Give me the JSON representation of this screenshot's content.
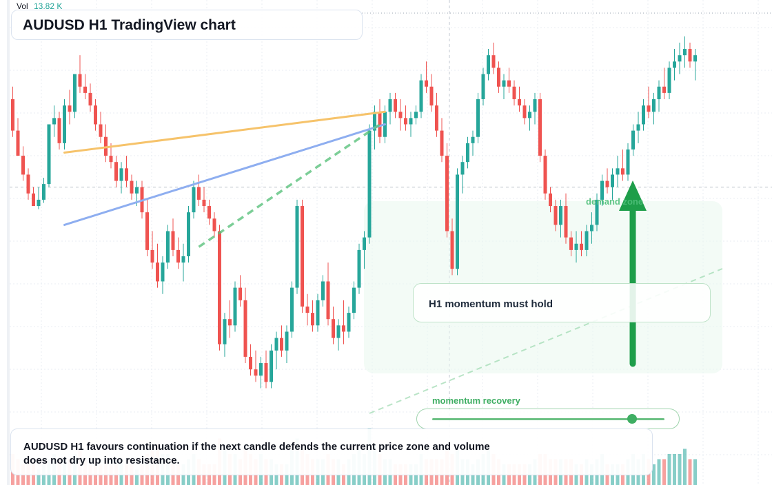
{
  "header": {
    "title": "AUDUSD H1 TradingView chart",
    "volume_label": "Vol",
    "volume_value": "13.82 K"
  },
  "annotations": {
    "callout": "H1 momentum must hold",
    "zone_label": "demand zone",
    "momentum_label": "momentum recovery",
    "momentum_level": 0.86,
    "summary": "AUDUSD H1 favours continuation if the next candle defends the current price zone and volume does not dry up into resistance."
  },
  "colors": {
    "up": "#26a69a",
    "down": "#ef5350",
    "orange_line": "#f6c36b",
    "blue_line": "#8eaef0",
    "accent_green": "#1e9e4a"
  },
  "chart_data": {
    "type": "candlestick",
    "symbol": "AUDUSD",
    "timeframe": "H1",
    "price_range": [
      0,
      100
    ],
    "volume_range": [
      0,
      12
    ],
    "candles": [
      [
        80,
        84,
        68,
        70,
        6
      ],
      [
        70,
        74,
        62,
        62,
        5
      ],
      [
        62,
        65,
        54,
        56,
        4
      ],
      [
        56,
        58,
        48,
        50,
        5
      ],
      [
        50,
        52,
        46,
        46,
        4
      ],
      [
        46,
        52,
        45,
        48,
        3
      ],
      [
        48,
        55,
        47,
        53,
        4
      ],
      [
        53,
        72,
        52,
        72,
        5
      ],
      [
        72,
        78,
        68,
        74,
        6
      ],
      [
        74,
        76,
        64,
        66,
        5
      ],
      [
        66,
        80,
        64,
        78,
        5
      ],
      [
        78,
        83,
        72,
        76,
        5
      ],
      [
        76,
        88,
        74,
        88,
        6
      ],
      [
        88,
        94,
        82,
        84,
        7
      ],
      [
        84,
        88,
        80,
        82,
        5
      ],
      [
        82,
        85,
        76,
        78,
        4
      ],
      [
        78,
        80,
        70,
        72,
        5
      ],
      [
        72,
        76,
        66,
        68,
        4
      ],
      [
        68,
        72,
        60,
        62,
        5
      ],
      [
        62,
        66,
        58,
        60,
        4
      ],
      [
        60,
        62,
        52,
        54,
        4
      ],
      [
        54,
        60,
        50,
        58,
        5
      ],
      [
        58,
        62,
        52,
        54,
        4
      ],
      [
        54,
        56,
        48,
        50,
        4
      ],
      [
        50,
        54,
        46,
        52,
        3
      ],
      [
        52,
        54,
        42,
        44,
        4
      ],
      [
        44,
        48,
        30,
        32,
        6
      ],
      [
        32,
        38,
        26,
        28,
        7
      ],
      [
        28,
        34,
        20,
        22,
        8
      ],
      [
        22,
        30,
        18,
        28,
        6
      ],
      [
        28,
        40,
        26,
        38,
        6
      ],
      [
        38,
        42,
        30,
        32,
        5
      ],
      [
        32,
        36,
        26,
        28,
        4
      ],
      [
        28,
        34,
        22,
        30,
        4
      ],
      [
        30,
        46,
        28,
        44,
        5
      ],
      [
        44,
        54,
        42,
        52,
        6
      ],
      [
        52,
        56,
        46,
        48,
        5
      ],
      [
        48,
        52,
        44,
        46,
        4
      ],
      [
        46,
        48,
        40,
        42,
        4
      ],
      [
        42,
        44,
        36,
        38,
        4
      ],
      [
        38,
        40,
        0,
        2,
        9
      ],
      [
        2,
        12,
        -2,
        10,
        7
      ],
      [
        10,
        16,
        4,
        8,
        6
      ],
      [
        8,
        22,
        6,
        20,
        6
      ],
      [
        20,
        24,
        14,
        16,
        5
      ],
      [
        16,
        20,
        -4,
        -2,
        7
      ],
      [
        -2,
        2,
        -8,
        -6,
        6
      ],
      [
        -6,
        0,
        -10,
        -8,
        5
      ],
      [
        -8,
        -2,
        -12,
        -4,
        6
      ],
      [
        -4,
        0,
        -12,
        -10,
        5
      ],
      [
        -10,
        2,
        -12,
        0,
        5
      ],
      [
        0,
        6,
        -6,
        4,
        4
      ],
      [
        4,
        8,
        -2,
        0,
        4
      ],
      [
        0,
        8,
        -4,
        6,
        4
      ],
      [
        6,
        22,
        4,
        20,
        7
      ],
      [
        20,
        48,
        18,
        46,
        9
      ],
      [
        46,
        48,
        12,
        14,
        8
      ],
      [
        14,
        18,
        8,
        12,
        6
      ],
      [
        12,
        16,
        6,
        8,
        5
      ],
      [
        8,
        18,
        6,
        16,
        5
      ],
      [
        16,
        24,
        14,
        22,
        5
      ],
      [
        22,
        28,
        8,
        10,
        6
      ],
      [
        10,
        14,
        2,
        4,
        5
      ],
      [
        4,
        10,
        0,
        8,
        5
      ],
      [
        8,
        16,
        2,
        6,
        4
      ],
      [
        6,
        14,
        4,
        12,
        5
      ],
      [
        12,
        22,
        10,
        20,
        6
      ],
      [
        20,
        34,
        18,
        32,
        7
      ],
      [
        32,
        38,
        26,
        36,
        6
      ],
      [
        36,
        72,
        34,
        70,
        11
      ],
      [
        70,
        78,
        64,
        76,
        8
      ],
      [
        76,
        80,
        66,
        68,
        6
      ],
      [
        68,
        78,
        66,
        76,
        5
      ],
      [
        76,
        82,
        72,
        80,
        5
      ],
      [
        80,
        82,
        74,
        76,
        4
      ],
      [
        76,
        80,
        70,
        74,
        4
      ],
      [
        74,
        78,
        70,
        72,
        4
      ],
      [
        72,
        76,
        68,
        74,
        4
      ],
      [
        74,
        78,
        72,
        76,
        4
      ],
      [
        76,
        88,
        74,
        86,
        6
      ],
      [
        86,
        92,
        82,
        84,
        5
      ],
      [
        84,
        88,
        76,
        78,
        5
      ],
      [
        78,
        82,
        68,
        70,
        5
      ],
      [
        70,
        74,
        60,
        62,
        5
      ],
      [
        62,
        66,
        36,
        38,
        7
      ],
      [
        38,
        42,
        24,
        26,
        6
      ],
      [
        26,
        58,
        24,
        56,
        7
      ],
      [
        56,
        62,
        50,
        60,
        5
      ],
      [
        60,
        68,
        58,
        66,
        5
      ],
      [
        66,
        70,
        62,
        68,
        4
      ],
      [
        68,
        82,
        66,
        80,
        5
      ],
      [
        80,
        90,
        78,
        88,
        6
      ],
      [
        88,
        96,
        86,
        94,
        7
      ],
      [
        94,
        98,
        88,
        90,
        6
      ],
      [
        90,
        92,
        82,
        84,
        5
      ],
      [
        84,
        88,
        80,
        86,
        4
      ],
      [
        86,
        90,
        82,
        84,
        4
      ],
      [
        84,
        86,
        78,
        80,
        4
      ],
      [
        80,
        84,
        76,
        78,
        4
      ],
      [
        78,
        80,
        72,
        74,
        4
      ],
      [
        74,
        78,
        70,
        76,
        4
      ],
      [
        76,
        82,
        72,
        80,
        5
      ],
      [
        80,
        82,
        60,
        62,
        6
      ],
      [
        62,
        64,
        48,
        50,
        6
      ],
      [
        50,
        52,
        44,
        46,
        5
      ],
      [
        46,
        48,
        38,
        40,
        5
      ],
      [
        40,
        48,
        36,
        46,
        5
      ],
      [
        46,
        50,
        34,
        36,
        5
      ],
      [
        36,
        38,
        30,
        32,
        5
      ],
      [
        32,
        38,
        28,
        34,
        4
      ],
      [
        34,
        38,
        30,
        32,
        4
      ],
      [
        32,
        40,
        30,
        38,
        5
      ],
      [
        38,
        44,
        34,
        40,
        4
      ],
      [
        40,
        50,
        38,
        48,
        5
      ],
      [
        48,
        56,
        46,
        54,
        6
      ],
      [
        54,
        58,
        50,
        52,
        4
      ],
      [
        52,
        58,
        48,
        56,
        4
      ],
      [
        56,
        62,
        52,
        58,
        4
      ],
      [
        58,
        64,
        54,
        56,
        4
      ],
      [
        56,
        66,
        54,
        64,
        5
      ],
      [
        64,
        72,
        62,
        70,
        6
      ],
      [
        70,
        76,
        66,
        72,
        5
      ],
      [
        72,
        80,
        70,
        78,
        6
      ],
      [
        78,
        84,
        74,
        76,
        5
      ],
      [
        76,
        82,
        72,
        80,
        4
      ],
      [
        80,
        86,
        76,
        84,
        5
      ],
      [
        84,
        90,
        80,
        82,
        5
      ],
      [
        82,
        92,
        80,
        90,
        6
      ],
      [
        90,
        96,
        86,
        92,
        6
      ],
      [
        92,
        98,
        88,
        94,
        6
      ],
      [
        94,
        100,
        90,
        96,
        7
      ],
      [
        96,
        98,
        90,
        92,
        5
      ],
      [
        92,
        96,
        86,
        94,
        5
      ]
    ],
    "drawings": {
      "orange_trendline": [
        [
          10.0,
          63.0
        ],
        [
          72.0,
          76.0
        ]
      ],
      "blue_trendline": [
        [
          10.0,
          40.0
        ],
        [
          72.0,
          72.0
        ]
      ],
      "crosshair_price_line": 52,
      "breakout_projection": [
        [
          36.0,
          33.0
        ],
        [
          71.5,
          72.5
        ]
      ]
    }
  }
}
